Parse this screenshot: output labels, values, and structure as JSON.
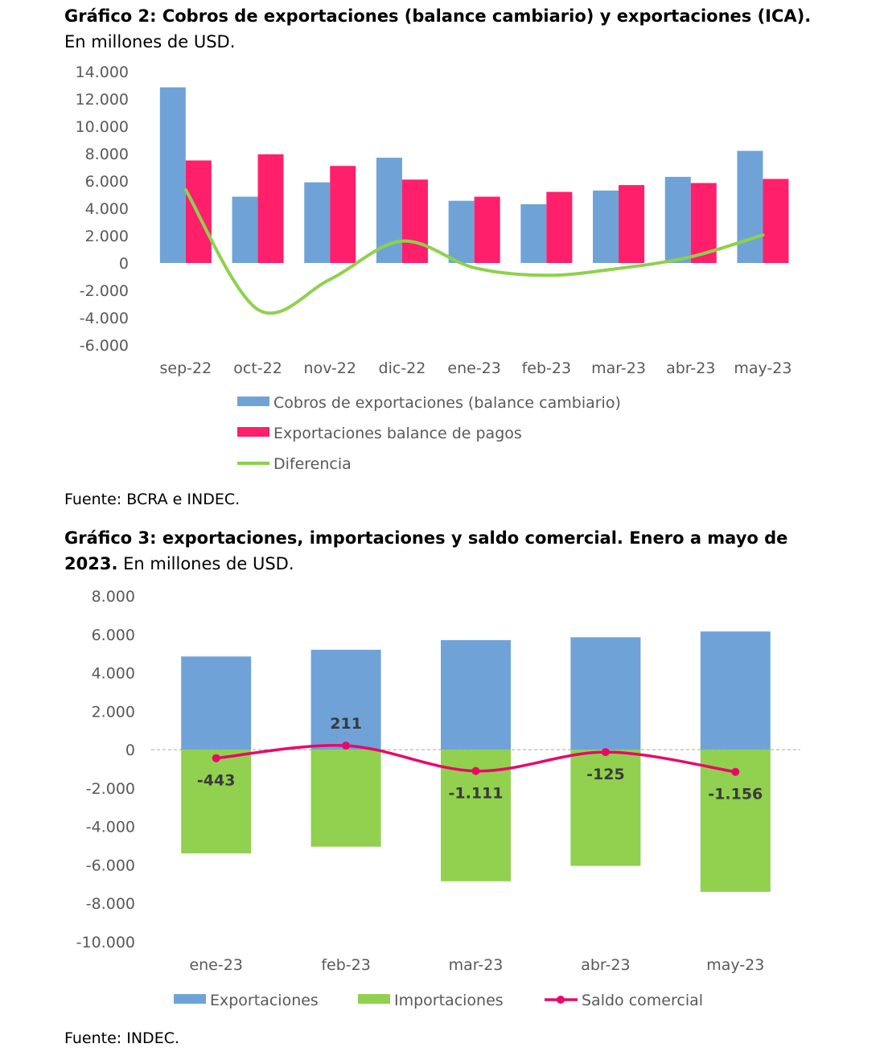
{
  "chart2": {
    "title_bold": "Gráfico 2: Cobros de exportaciones (balance cambiario) y exportaciones (ICA).",
    "subtitle": "En millones de USD.",
    "source": "Fuente: BCRA e INDEC."
  },
  "chart3": {
    "title_bold_1": "Gráfico 3: exportaciones, importaciones y saldo comercial. Enero a mayo de",
    "title_bold_2": "2023.",
    "subtitle": " En millones de USD.",
    "source": "Fuente: INDEC."
  },
  "chart_data": [
    {
      "type": "bar",
      "categories": [
        "sep-22",
        "oct-22",
        "nov-22",
        "dic-22",
        "ene-23",
        "feb-23",
        "mar-23",
        "abr-23",
        "may-23"
      ],
      "series": [
        {
          "name": "Cobros de exportaciones (balance cambiario)",
          "kind": "bar",
          "color": "#6fa3d8",
          "values": [
            12850,
            4850,
            5900,
            7700,
            4550,
            4300,
            5300,
            6300,
            8200
          ]
        },
        {
          "name": "Exportaciones balance de pagos",
          "kind": "bar",
          "color": "#ff1f6b",
          "values": [
            7500,
            7950,
            7100,
            6100,
            4850,
            5200,
            5700,
            5850,
            6150
          ]
        },
        {
          "name": "Diferencia",
          "kind": "line",
          "color": "#8ed14b",
          "values": [
            5350,
            -3400,
            -1200,
            1600,
            -350,
            -900,
            -400,
            450,
            2050
          ]
        }
      ],
      "yticks": [
        "14.000",
        "12.000",
        "10.000",
        "8.000",
        "6.000",
        "4.000",
        "2.000",
        "0",
        "-2.000",
        "-4.000",
        "-6.000"
      ],
      "ylim": [
        -6000,
        14000
      ],
      "legend": "bottom"
    },
    {
      "type": "bar",
      "stacked": true,
      "categories": [
        "ene-23",
        "feb-23",
        "mar-23",
        "abr-23",
        "may-23"
      ],
      "series": [
        {
          "name": "Exportaciones",
          "kind": "bar",
          "color": "#6fa3d8",
          "values": [
            4850,
            5200,
            5700,
            5850,
            6150
          ]
        },
        {
          "name": "Importaciones",
          "kind": "bar",
          "color": "#92d050",
          "values": [
            -5400,
            -5050,
            -6850,
            -6050,
            -7400
          ]
        },
        {
          "name": "Saldo comercial",
          "kind": "line",
          "color": "#e8086a",
          "values": [
            -443,
            211,
            -1111,
            -125,
            -1156
          ],
          "labels": [
            "-443",
            "211",
            "-1.111",
            "-125",
            "-1.156"
          ]
        }
      ],
      "yticks": [
        "8.000",
        "6.000",
        "4.000",
        "2.000",
        "0",
        "-2.000",
        "-4.000",
        "-6.000",
        "-8.000",
        "-10.000"
      ],
      "ylim": [
        -10000,
        8000
      ],
      "legend": "bottom"
    }
  ]
}
